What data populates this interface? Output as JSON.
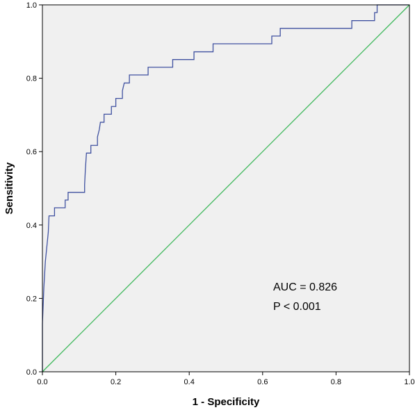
{
  "chart_data": {
    "type": "line",
    "title": "",
    "xlabel": "1 - Specificity",
    "ylabel": "Sensitivity",
    "xlim": [
      0,
      1
    ],
    "ylim": [
      0,
      1
    ],
    "x_ticks": [
      "0.0",
      "0.2",
      "0.4",
      "0.6",
      "0.8",
      "1.0"
    ],
    "y_ticks": [
      "0.0",
      "0.2",
      "0.4",
      "0.6",
      "0.8",
      "1.0"
    ],
    "grid": false,
    "legend": "none",
    "background_color": "#f0f0f0",
    "annotations": {
      "auc": "AUC = 0.826",
      "p_value": "P < 0.001"
    },
    "series": [
      {
        "color": "#3f51a0",
        "step": true,
        "points": [
          [
            0.0,
            0.0
          ],
          [
            0.0,
            0.13
          ],
          [
            0.004,
            0.23
          ],
          [
            0.008,
            0.3
          ],
          [
            0.012,
            0.34
          ],
          [
            0.016,
            0.38
          ],
          [
            0.018,
            0.425
          ],
          [
            0.033,
            0.425
          ],
          [
            0.033,
            0.447
          ],
          [
            0.062,
            0.447
          ],
          [
            0.062,
            0.468
          ],
          [
            0.07,
            0.468
          ],
          [
            0.07,
            0.489
          ],
          [
            0.115,
            0.489
          ],
          [
            0.115,
            0.51
          ],
          [
            0.117,
            0.55
          ],
          [
            0.12,
            0.596
          ],
          [
            0.132,
            0.596
          ],
          [
            0.132,
            0.617
          ],
          [
            0.15,
            0.617
          ],
          [
            0.15,
            0.64
          ],
          [
            0.155,
            0.66
          ],
          [
            0.158,
            0.68
          ],
          [
            0.168,
            0.68
          ],
          [
            0.168,
            0.702
          ],
          [
            0.188,
            0.702
          ],
          [
            0.188,
            0.723
          ],
          [
            0.2,
            0.723
          ],
          [
            0.2,
            0.745
          ],
          [
            0.218,
            0.745
          ],
          [
            0.218,
            0.766
          ],
          [
            0.223,
            0.787
          ],
          [
            0.237,
            0.787
          ],
          [
            0.237,
            0.809
          ],
          [
            0.288,
            0.809
          ],
          [
            0.288,
            0.83
          ],
          [
            0.355,
            0.83
          ],
          [
            0.355,
            0.851
          ],
          [
            0.413,
            0.851
          ],
          [
            0.413,
            0.872
          ],
          [
            0.465,
            0.872
          ],
          [
            0.465,
            0.894
          ],
          [
            0.625,
            0.894
          ],
          [
            0.625,
            0.915
          ],
          [
            0.648,
            0.915
          ],
          [
            0.648,
            0.936
          ],
          [
            0.843,
            0.936
          ],
          [
            0.843,
            0.957
          ],
          [
            0.905,
            0.957
          ],
          [
            0.905,
            0.979
          ],
          [
            0.912,
            0.979
          ],
          [
            0.912,
            1.0
          ],
          [
            1.0,
            1.0
          ]
        ]
      },
      {
        "color": "#3cb85a",
        "points": [
          [
            0,
            0
          ],
          [
            1,
            1
          ]
        ]
      }
    ]
  }
}
